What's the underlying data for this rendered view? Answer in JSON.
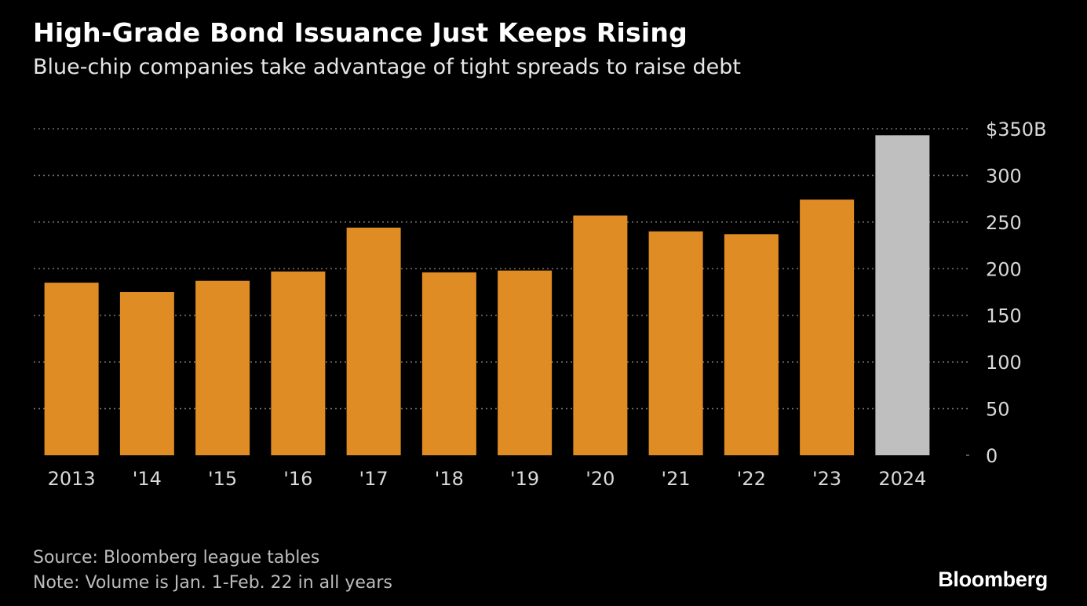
{
  "header": {
    "title": "High-Grade Bond Issuance Just Keeps Rising",
    "subtitle": "Blue-chip companies take advantage of tight spreads to raise debt"
  },
  "footer": {
    "source": "Source: Bloomberg league tables",
    "note": "Note: Volume is Jan. 1-Feb. 22 in all years",
    "brand": "Bloomberg"
  },
  "colors": {
    "background": "#000000",
    "bar_past": "#e08c24",
    "bar_current": "#bfbfbf",
    "gridline": "#6e6e6e",
    "tick_text": "#d9d9d9"
  },
  "chart_data": {
    "type": "bar",
    "categories": [
      "2013",
      "'14",
      "'15",
      "'16",
      "'17",
      "'18",
      "'19",
      "'20",
      "'21",
      "'22",
      "'23",
      "2024"
    ],
    "values": [
      185,
      175,
      187,
      197,
      244,
      196,
      198,
      257,
      240,
      237,
      274,
      343
    ],
    "highlight_index": 11,
    "ylim": [
      0,
      350
    ],
    "yticks": [
      0,
      50,
      100,
      150,
      200,
      250,
      300,
      350
    ],
    "ytick_labels": [
      "0",
      "50",
      "100",
      "150",
      "200",
      "250",
      "300",
      "$350B"
    ],
    "grid": "dotted horizontal",
    "y_axis_position": "right"
  }
}
